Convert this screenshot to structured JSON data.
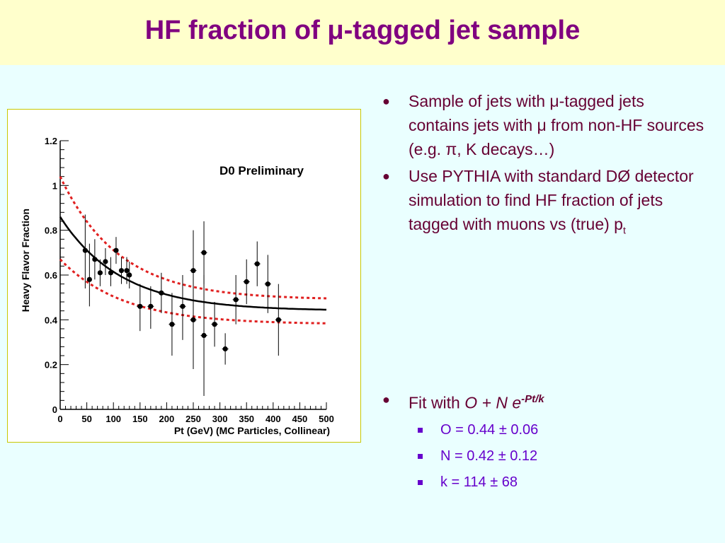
{
  "slide": {
    "title": "HF fraction of μ-tagged jet sample",
    "bullets": [
      "Sample of jets with μ-tagged jets contains jets with μ from non-HF sources (e.g. π, K decays…)",
      "Use PYTHIA with standard DØ  detector simulation to find HF fraction of jets tagged with muons vs (true) p"
    ],
    "bullet2_subscript": "t",
    "fit_prefix": "Fit with ",
    "fit_formula": "O + N e",
    "fit_exponent": "-Pt/k",
    "fit_params": [
      "O = 0.44 ± 0.06",
      "N = 0.42 ± 0.12",
      "k = 114 ± 68"
    ]
  },
  "chart_data": {
    "type": "scatter",
    "annotation": "D0 Preliminary",
    "xlabel": "Pt (GeV) (MC Particles, Collinear)",
    "ylabel": "Heavy Flavor Fraction",
    "xlim": [
      0,
      500
    ],
    "ylim": [
      0,
      1.2
    ],
    "xticks": [
      "0",
      "50",
      "100",
      "150",
      "200",
      "250",
      "300",
      "350",
      "400",
      "450",
      "500"
    ],
    "yticks": [
      "0",
      "0.2",
      "0.4",
      "0.6",
      "0.8",
      "1",
      "1.2"
    ],
    "points": [
      {
        "x": 47,
        "y": 0.71,
        "ylo": 0.54,
        "yhi": 0.87,
        "xerr": 4
      },
      {
        "x": 55,
        "y": 0.58,
        "ylo": 0.46,
        "yhi": 0.74,
        "xerr": 4
      },
      {
        "x": 65,
        "y": 0.67,
        "ylo": 0.58,
        "yhi": 0.76,
        "xerr": 4
      },
      {
        "x": 75,
        "y": 0.61,
        "ylo": 0.55,
        "yhi": 0.67,
        "xerr": 4
      },
      {
        "x": 85,
        "y": 0.66,
        "ylo": 0.6,
        "yhi": 0.72,
        "xerr": 4
      },
      {
        "x": 95,
        "y": 0.61,
        "ylo": 0.55,
        "yhi": 0.68,
        "xerr": 4
      },
      {
        "x": 105,
        "y": 0.71,
        "ylo": 0.65,
        "yhi": 0.77,
        "xerr": 4
      },
      {
        "x": 115,
        "y": 0.62,
        "ylo": 0.56,
        "yhi": 0.68,
        "xerr": 4
      },
      {
        "x": 125,
        "y": 0.62,
        "ylo": 0.56,
        "yhi": 0.68,
        "xerr": 4
      },
      {
        "x": 130,
        "y": 0.6,
        "ylo": 0.54,
        "yhi": 0.66,
        "xerr": 4
      },
      {
        "x": 150,
        "y": 0.46,
        "ylo": 0.35,
        "yhi": 0.56,
        "xerr": 6
      },
      {
        "x": 170,
        "y": 0.46,
        "ylo": 0.36,
        "yhi": 0.55,
        "xerr": 6
      },
      {
        "x": 190,
        "y": 0.52,
        "ylo": 0.43,
        "yhi": 0.61,
        "xerr": 6
      },
      {
        "x": 210,
        "y": 0.38,
        "ylo": 0.24,
        "yhi": 0.52,
        "xerr": 6
      },
      {
        "x": 230,
        "y": 0.46,
        "ylo": 0.31,
        "yhi": 0.6,
        "xerr": 6
      },
      {
        "x": 250,
        "y": 0.62,
        "ylo": 0.4,
        "yhi": 0.8,
        "xerr": 6
      },
      {
        "x": 250,
        "y": 0.4,
        "ylo": 0.18,
        "yhi": 0.62,
        "xerr": 6
      },
      {
        "x": 270,
        "y": 0.7,
        "ylo": 0.56,
        "yhi": 0.84,
        "xerr": 6
      },
      {
        "x": 270,
        "y": 0.33,
        "ylo": 0.06,
        "yhi": 0.6,
        "xerr": 6
      },
      {
        "x": 290,
        "y": 0.38,
        "ylo": 0.28,
        "yhi": 0.48,
        "xerr": 6
      },
      {
        "x": 310,
        "y": 0.27,
        "ylo": 0.2,
        "yhi": 0.34,
        "xerr": 6
      },
      {
        "x": 330,
        "y": 0.49,
        "ylo": 0.38,
        "yhi": 0.6,
        "xerr": 6
      },
      {
        "x": 350,
        "y": 0.57,
        "ylo": 0.47,
        "yhi": 0.67,
        "xerr": 6
      },
      {
        "x": 370,
        "y": 0.65,
        "ylo": 0.55,
        "yhi": 0.75,
        "xerr": 6
      },
      {
        "x": 390,
        "y": 0.56,
        "ylo": 0.43,
        "yhi": 0.69,
        "xerr": 6
      },
      {
        "x": 410,
        "y": 0.4,
        "ylo": 0.24,
        "yhi": 0.56,
        "xerr": 6
      }
    ],
    "fit": {
      "O": 0.44,
      "N": 0.42,
      "k": 114
    },
    "band_upper": {
      "O": 0.49,
      "N": 0.55,
      "k": 110
    },
    "band_lower": {
      "O": 0.38,
      "N": 0.29,
      "k": 118
    },
    "colors": {
      "fit": "#000000",
      "band": "#e02020",
      "points": "#000000"
    }
  }
}
